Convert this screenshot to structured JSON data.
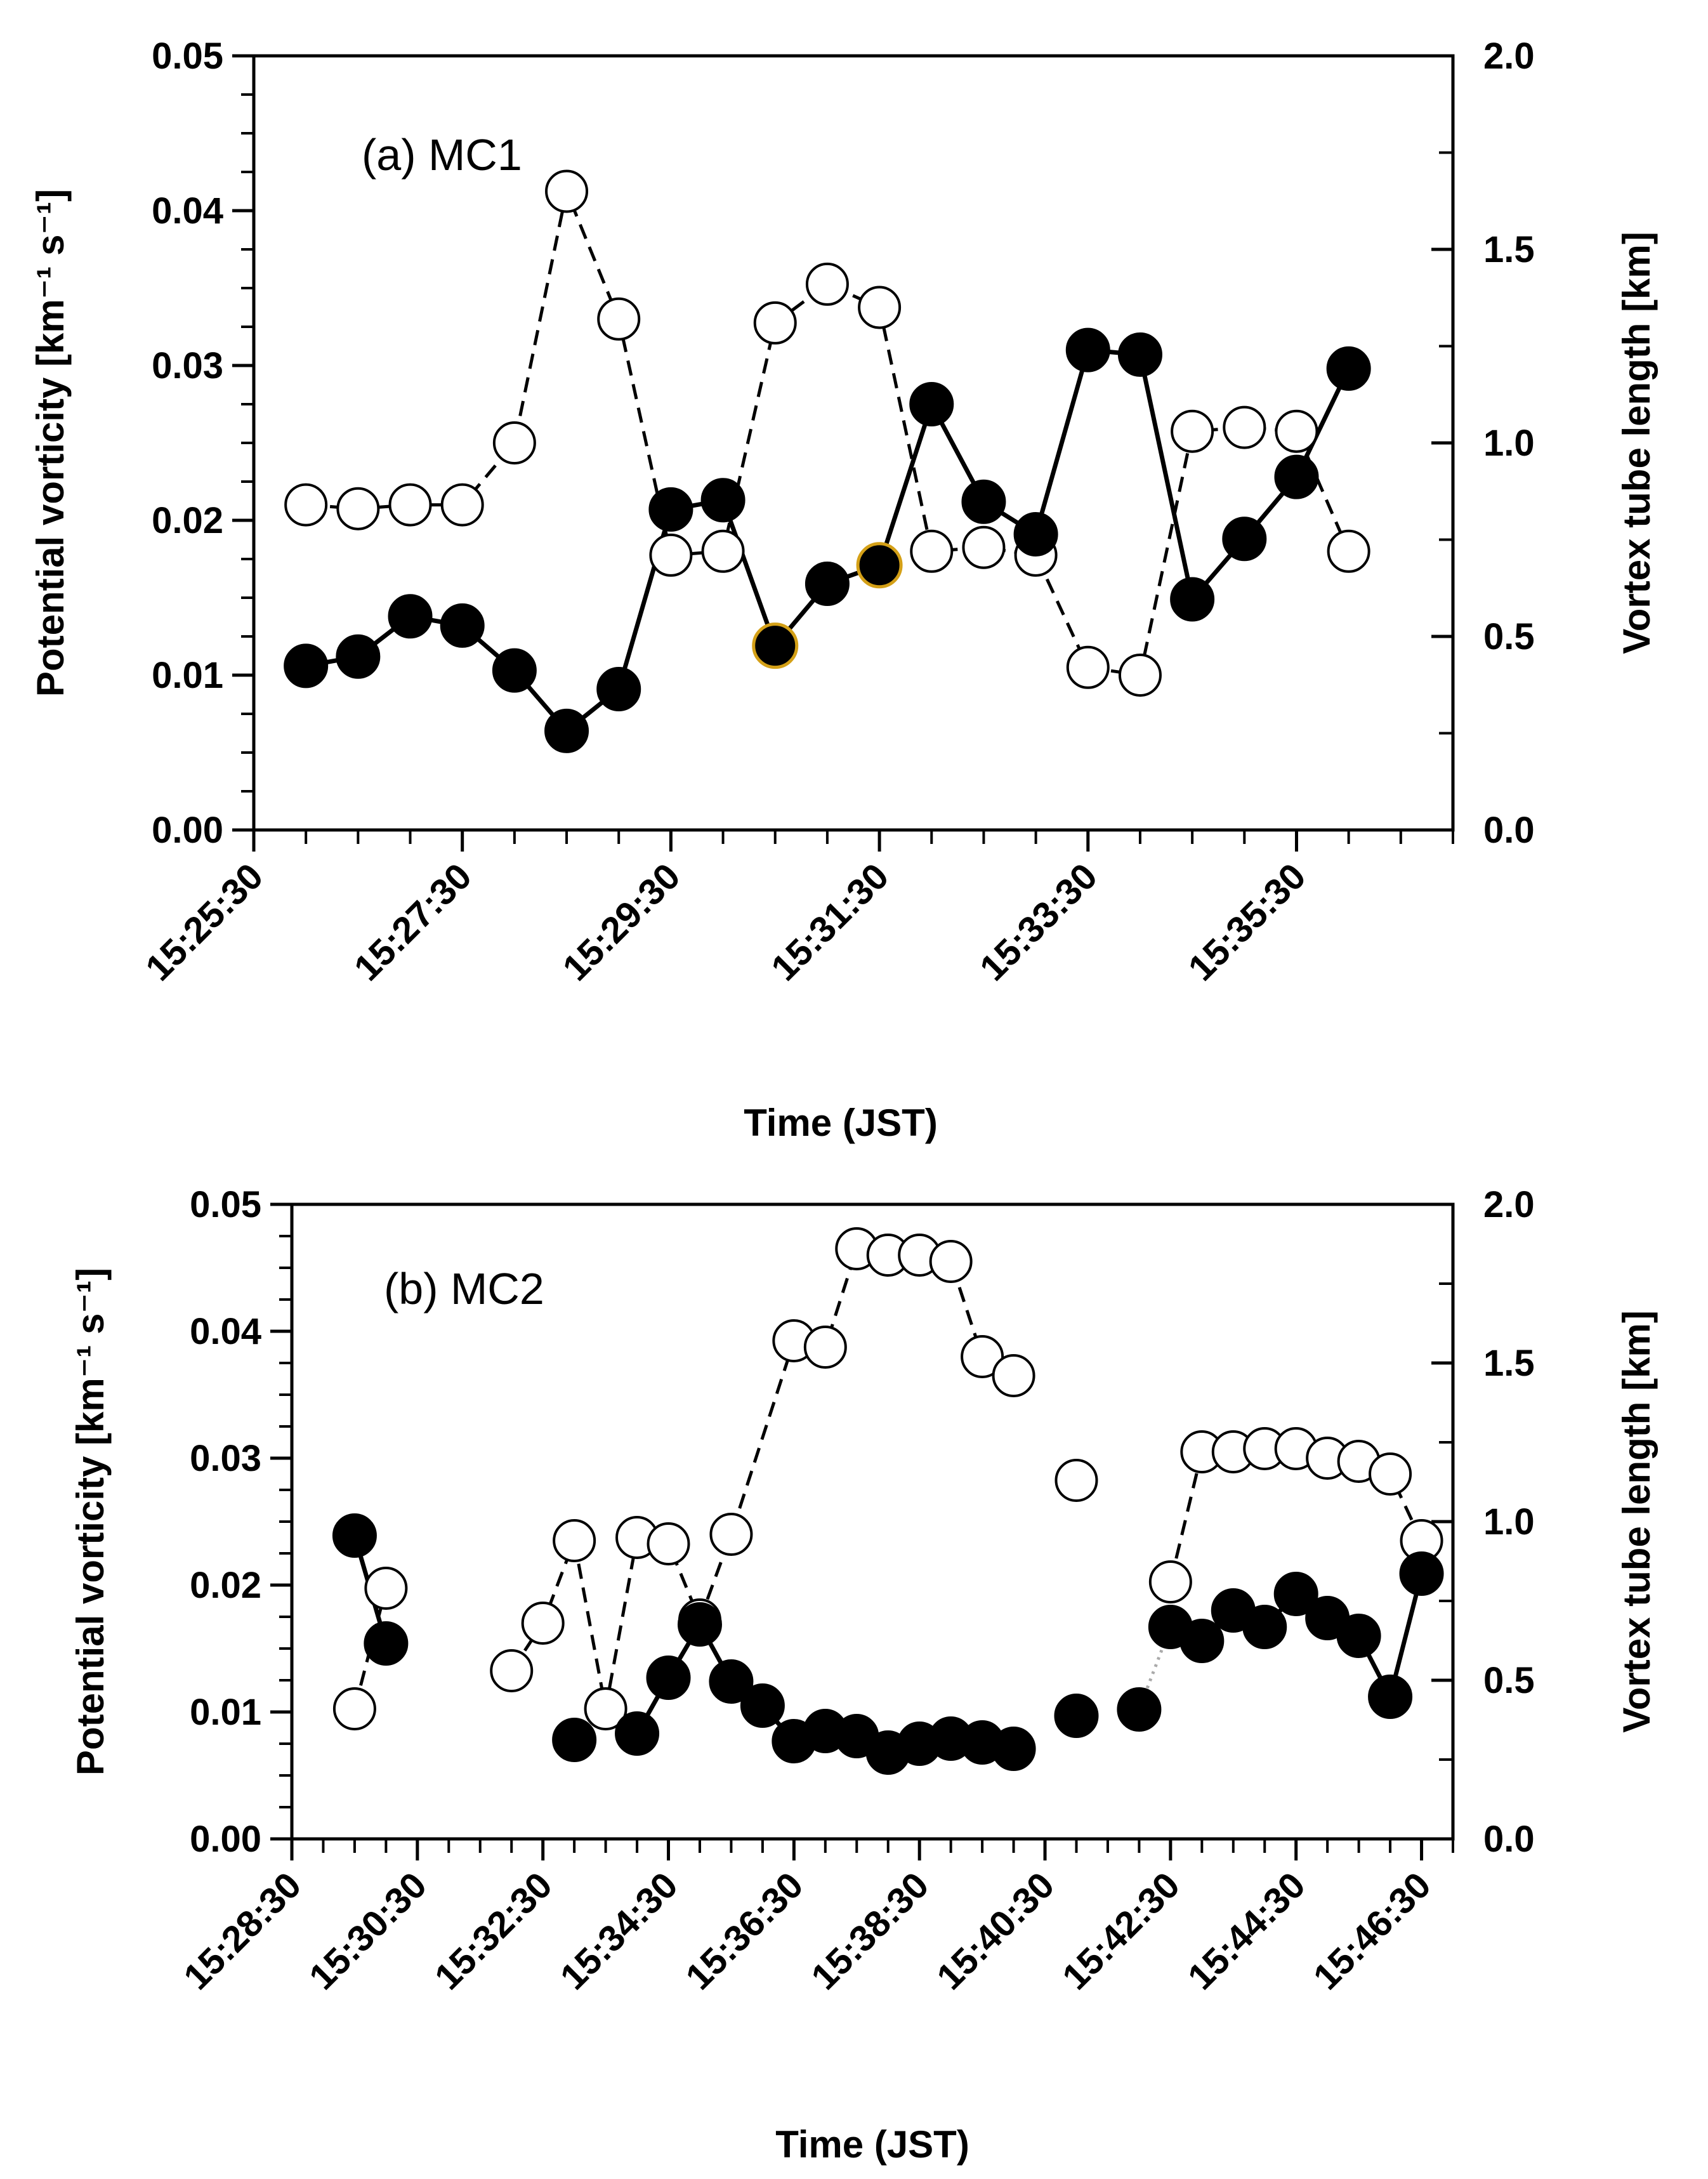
{
  "colors": {
    "axis": "#000000",
    "filled_marker": "#000000",
    "open_marker_fill": "#ffffff",
    "highlight_outline": "#d4a017",
    "dotted_gap": "#aaaaaa"
  },
  "chart_data": [
    {
      "type": "line",
      "panel_label": "(a) MC1",
      "xlabel": "Time (JST)",
      "ylabel": "Potential vorticity [km⁻¹ s⁻¹]",
      "y2label": "Vortex tube length [km]",
      "xlim": [
        0,
        11.5
      ],
      "x_tick_values": [
        0,
        2,
        4,
        6,
        8,
        10
      ],
      "x_tick_labels": [
        "15:25:30",
        "15:27:30",
        "15:29:30",
        "15:31:30",
        "15:33:30",
        "15:35:30"
      ],
      "x_minor_step": 0.5,
      "ylim": [
        0,
        0.05
      ],
      "y_tick_values": [
        0,
        0.01,
        0.02,
        0.03,
        0.04,
        0.05
      ],
      "y_tick_labels": [
        "0.00",
        "0.01",
        "0.02",
        "0.03",
        "0.04",
        "0.05"
      ],
      "y_minor_step": 0.0025,
      "y2lim": [
        0,
        2.0
      ],
      "y2_tick_values": [
        0,
        0.5,
        1.0,
        1.5,
        2.0
      ],
      "y2_tick_labels": [
        "0.0",
        "0.5",
        "1.0",
        "1.5",
        "2.0"
      ],
      "y2_minor_step": 0.25,
      "series": [
        {
          "name": "Potential vorticity",
          "axis": "left",
          "marker": "filled",
          "line": "solid",
          "x": [
            0.5,
            1.0,
            1.5,
            2.0,
            2.5,
            3.0,
            3.5,
            4.0,
            4.5,
            5.0,
            5.5,
            6.0,
            6.5,
            7.0,
            7.5,
            8.0,
            8.5,
            9.0,
            9.5,
            10.0,
            10.5
          ],
          "values": [
            0.0106,
            0.0112,
            0.0138,
            0.0132,
            0.0103,
            0.0064,
            0.0091,
            0.0207,
            0.0213,
            0.0119,
            0.0159,
            0.0171,
            0.0275,
            0.0212,
            0.0191,
            0.031,
            0.0307,
            0.0149,
            0.0188,
            0.0228,
            0.0298
          ],
          "highlighted_x": [
            5.0,
            6.0
          ]
        },
        {
          "name": "Vortex tube length",
          "axis": "right",
          "marker": "open",
          "line": "dashed",
          "x": [
            0.5,
            1.0,
            1.5,
            2.0,
            2.5,
            3.0,
            3.5,
            4.0,
            4.5,
            5.0,
            5.5,
            6.0,
            6.5,
            7.0,
            7.5,
            8.0,
            8.5,
            9.0,
            9.5,
            10.0,
            10.5
          ],
          "values": [
            0.84,
            0.83,
            0.84,
            0.84,
            1.0,
            1.65,
            1.32,
            0.71,
            0.72,
            1.31,
            1.41,
            1.35,
            0.72,
            0.73,
            0.71,
            0.42,
            0.4,
            1.03,
            1.04,
            1.03,
            0.72
          ]
        }
      ]
    },
    {
      "type": "line",
      "panel_label": "(b) MC2",
      "xlabel": "Time (JST)",
      "ylabel": "Potential vorticity [km⁻¹ s⁻¹]",
      "y2label": "Vortex tube length [km]",
      "xlim": [
        0,
        18.5
      ],
      "x_tick_values": [
        0,
        2,
        4,
        6,
        8,
        10,
        12,
        14,
        16,
        18
      ],
      "x_tick_labels": [
        "15:28:30",
        "15:30:30",
        "15:32:30",
        "15:34:30",
        "15:36:30",
        "15:38:30",
        "15:40:30",
        "15:42:30",
        "15:44:30",
        "15:46:30"
      ],
      "x_minor_step": 0.5,
      "ylim": [
        0,
        0.05
      ],
      "y_tick_values": [
        0,
        0.01,
        0.02,
        0.03,
        0.04,
        0.05
      ],
      "y_tick_labels": [
        "0.00",
        "0.01",
        "0.02",
        "0.03",
        "0.04",
        "0.05"
      ],
      "y_minor_step": 0.0025,
      "y2lim": [
        0,
        2.0
      ],
      "y2_tick_values": [
        0,
        0.5,
        1.0,
        1.5,
        2.0
      ],
      "y2_tick_labels": [
        "0.0",
        "0.5",
        "1.0",
        "1.5",
        "2.0"
      ],
      "y2_minor_step": 0.25,
      "series": [
        {
          "name": "Potential vorticity",
          "axis": "left",
          "marker": "filled",
          "line": "solid",
          "x": [
            1.0,
            1.5,
            4.5,
            5.5,
            6.0,
            6.5,
            7.0,
            7.5,
            8.0,
            8.5,
            9.0,
            9.5,
            10.0,
            10.5,
            11.0,
            11.5,
            12.5,
            13.5,
            14.0,
            14.5,
            15.0,
            15.5,
            16.0,
            16.5,
            17.0,
            17.5,
            18.0
          ],
          "values": [
            0.0239,
            0.0154,
            0.0078,
            0.0083,
            0.0127,
            0.0169,
            0.0124,
            0.0105,
            0.0077,
            0.0085,
            0.0081,
            0.0068,
            0.0075,
            0.0079,
            0.0076,
            0.0071,
            0.0097,
            0.0102,
            0.0167,
            0.0156,
            0.018,
            0.0167,
            0.0193,
            0.0174,
            0.016,
            0.0112,
            0.0209
          ],
          "segments": [
            [
              0,
              1
            ],
            [
              3,
              15
            ],
            [
              18,
              26
            ]
          ]
        },
        {
          "name": "Vortex tube length",
          "axis": "right",
          "marker": "open",
          "line": "dashed",
          "x": [
            1.0,
            1.5,
            3.5,
            4.0,
            4.5,
            5.0,
            5.5,
            6.0,
            6.5,
            7.0,
            8.0,
            8.5,
            9.0,
            9.5,
            10.0,
            10.5,
            11.0,
            11.5,
            12.5,
            14.0,
            14.5,
            15.0,
            15.5,
            16.0,
            16.5,
            17.0,
            17.5,
            18.0
          ],
          "values": [
            0.41,
            0.79,
            0.53,
            0.68,
            0.94,
            0.41,
            0.95,
            0.93,
            0.69,
            0.96,
            1.57,
            1.55,
            1.86,
            1.84,
            1.84,
            1.82,
            1.52,
            1.46,
            1.13,
            0.81,
            1.22,
            1.22,
            1.23,
            1.23,
            1.2,
            1.19,
            1.15,
            0.94
          ],
          "segments": [
            [
              0,
              1
            ],
            [
              2,
              17
            ],
            [
              19,
              27
            ]
          ]
        }
      ]
    }
  ]
}
